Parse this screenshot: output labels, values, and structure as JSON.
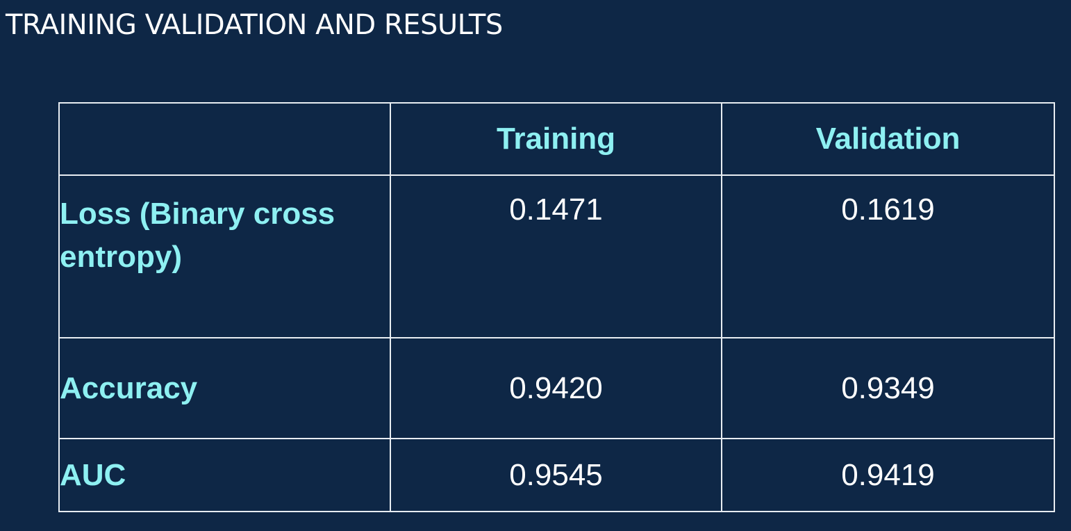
{
  "title": "TRAINING VALIDATION AND RESULTS",
  "table": {
    "columns": [
      "",
      "Training",
      "Validation"
    ],
    "rows": [
      {
        "metric": "Loss (Binary cross entropy)",
        "training": "0.1471",
        "validation": "0.1619"
      },
      {
        "metric": "Accuracy",
        "training": "0.9420",
        "validation": "0.9349"
      },
      {
        "metric": "AUC",
        "training": "0.9545",
        "validation": "0.9419"
      }
    ]
  },
  "colors": {
    "background": "#0e2746",
    "header_text": "#8ef0f2",
    "value_text": "#ffffff",
    "grid_lines": "#e8edf2"
  }
}
